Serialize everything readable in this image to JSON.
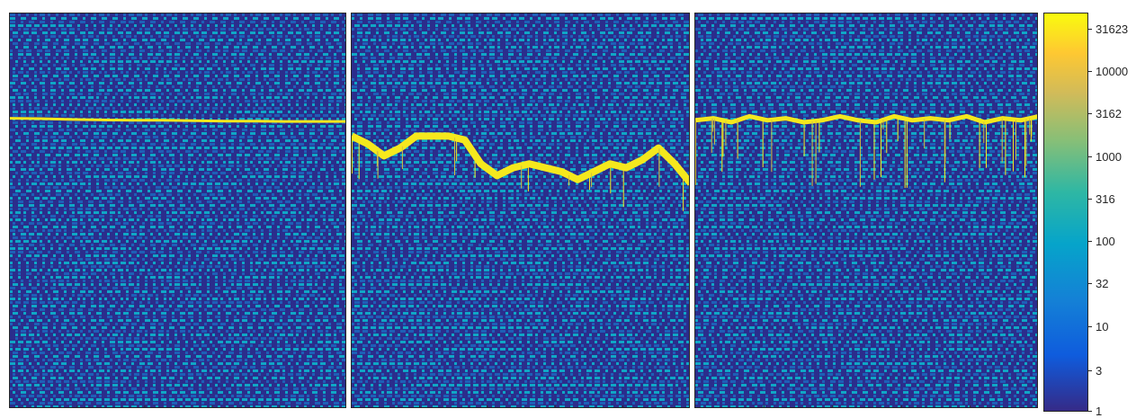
{
  "chart_data": [
    {
      "type": "heatmap",
      "panel": "left",
      "colormap": "parula",
      "color_scale": "log",
      "background": "interference fringe pattern, values 1-100",
      "feature": "single continuous bright horizontal ridge, steady",
      "ridge_values": [
        0.265,
        0.266,
        0.268,
        0.269,
        0.27,
        0.27,
        0.271,
        0.272,
        0.272,
        0.273,
        0.273,
        0.273
      ],
      "ridge_level": 31623
    },
    {
      "type": "heatmap",
      "panel": "center",
      "colormap": "parula",
      "color_scale": "log",
      "background": "interference fringe pattern, values 1-100",
      "feature": "broken ridge with segments, vertical spikes and a dip in the middle",
      "ridge_values": [
        0.31,
        0.33,
        0.36,
        0.34,
        0.31,
        0.31,
        0.31,
        0.32,
        0.38,
        0.41,
        0.39,
        0.38,
        0.39,
        0.4,
        0.42,
        0.4,
        0.38,
        0.39,
        0.37,
        0.34,
        0.38,
        0.43
      ],
      "ridge_level": 31623
    },
    {
      "type": "heatmap",
      "panel": "right",
      "colormap": "parula",
      "color_scale": "log",
      "background": "interference fringe pattern, values 1-100",
      "feature": "noisy bright ridge with many downward spikes",
      "ridge_values": [
        0.27,
        0.265,
        0.275,
        0.26,
        0.27,
        0.265,
        0.275,
        0.27,
        0.26,
        0.27,
        0.275,
        0.26,
        0.27,
        0.265,
        0.27,
        0.26,
        0.275,
        0.265,
        0.27,
        0.26
      ],
      "ridge_level": 31623
    }
  ],
  "colorbar": {
    "scale": "log",
    "range": [
      1,
      50000
    ],
    "ticks": [
      "31623",
      "10000",
      "3162",
      "1000",
      "316",
      "100",
      "32",
      "10",
      "3",
      "1"
    ],
    "tick_values": [
      31623,
      10000,
      3162,
      1000,
      316,
      100,
      32,
      10,
      3,
      1
    ],
    "colors": [
      "#352a87",
      "#0f5cdd",
      "#1481d6",
      "#06a4ca",
      "#2eb7a4",
      "#87bf77",
      "#d1bb59",
      "#fec832",
      "#f9fb0e"
    ]
  }
}
